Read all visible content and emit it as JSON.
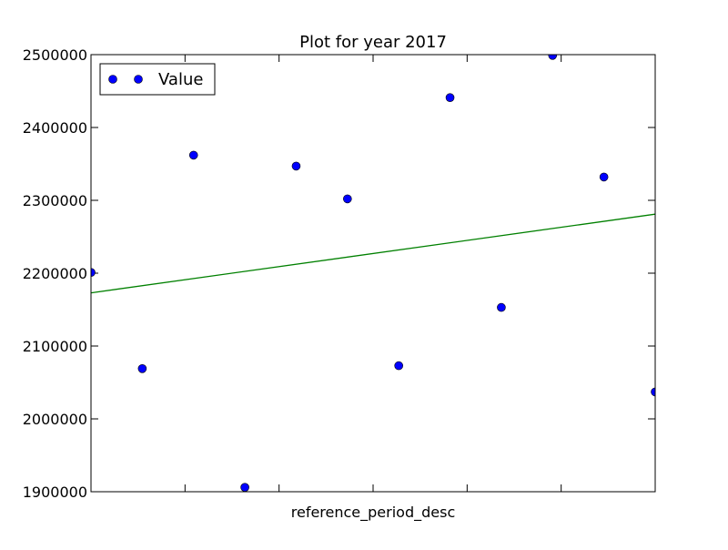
{
  "chart_data": {
    "type": "scatter",
    "title": "Plot for year 2017",
    "xlabel": "reference_period_desc",
    "ylabel": "",
    "ylim": [
      1900000,
      2500000
    ],
    "xlim": [
      0,
      11
    ],
    "yticks": [
      "1900000",
      "2000000",
      "2100000",
      "2200000",
      "2300000",
      "2400000",
      "2500000"
    ],
    "ytick_values": [
      1900000,
      2000000,
      2100000,
      2200000,
      2300000,
      2400000,
      2500000
    ],
    "xticks_count": 5,
    "grid": false,
    "legend": {
      "placement": "top-left",
      "entries": [
        "Value"
      ]
    },
    "series": [
      {
        "name": "Value",
        "marker": "circle",
        "color": "#0000ff",
        "x": [
          0,
          1,
          2,
          3,
          4,
          5,
          6,
          7,
          8,
          9,
          10,
          11
        ],
        "y": [
          2201000,
          2069000,
          2362000,
          1906000,
          2347000,
          2302000,
          2073000,
          2441000,
          2153000,
          2499000,
          2332000,
          2037000
        ]
      }
    ],
    "trendline": {
      "color": "#008000",
      "y_start": 2173000,
      "y_end": 2281000
    }
  }
}
